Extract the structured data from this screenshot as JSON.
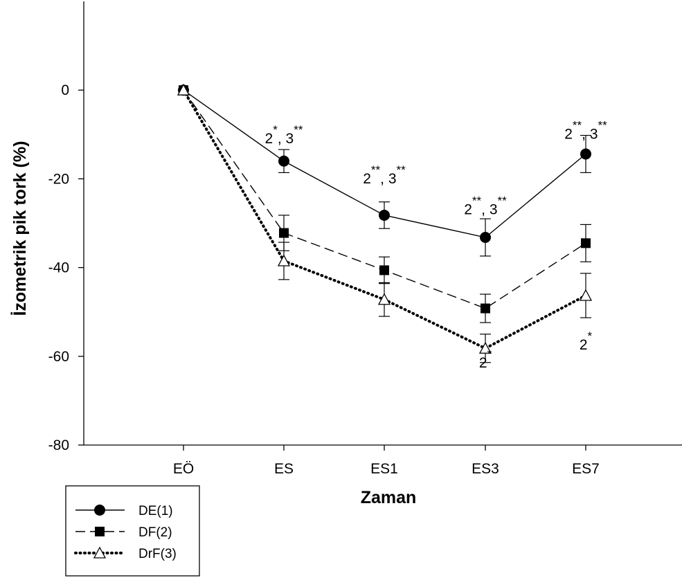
{
  "chart_data": {
    "type": "line",
    "title": "",
    "xlabel": "Zaman",
    "ylabel": "İzometrik pik tork (%)",
    "categories": [
      "EÖ",
      "ES",
      "ES1",
      "ES3",
      "ES7"
    ],
    "ylim": [
      -80,
      20
    ],
    "yticks": [
      0,
      -20,
      -40,
      -60,
      -80
    ],
    "grid": false,
    "legend_position": "bottom-left",
    "series": [
      {
        "name": "DE(1)",
        "marker": "filled-circle",
        "line": "solid",
        "values": [
          0,
          -16,
          -28.2,
          -33.2,
          -14.4
        ],
        "errors": [
          0,
          2.6,
          3,
          4.2,
          4.2
        ]
      },
      {
        "name": "DF(2)",
        "marker": "filled-square",
        "line": "dashed",
        "values": [
          0,
          -32.2,
          -40.6,
          -49.2,
          -34.5
        ],
        "errors": [
          0,
          4,
          3,
          3.2,
          4.2
        ]
      },
      {
        "name": "DrF(3)",
        "marker": "open-triangle",
        "line": "dotted",
        "values": [
          0,
          -38.5,
          -47.2,
          -58.2,
          -46.3
        ],
        "errors": [
          0,
          4.2,
          3.8,
          3.2,
          5
        ]
      }
    ],
    "annotations": [
      {
        "category": "ES",
        "y": -12,
        "parts": [
          {
            "base": "2",
            "sup": "*"
          },
          {
            "base": ", 3",
            "sup": "**"
          }
        ]
      },
      {
        "category": "ES1",
        "y": -21,
        "parts": [
          {
            "base": "2",
            "sup": "**"
          },
          {
            "base": ", 3",
            "sup": "**"
          }
        ]
      },
      {
        "category": "ES3",
        "y": -28,
        "parts": [
          {
            "base": "2",
            "sup": "**"
          },
          {
            "base": ", 3",
            "sup": "**"
          }
        ]
      },
      {
        "category": "ES7",
        "y": -11,
        "parts": [
          {
            "base": "2",
            "sup": "**"
          },
          {
            "base": ", 3",
            "sup": "**"
          }
        ]
      },
      {
        "category": "ES3",
        "y": -62.5,
        "parts": [
          {
            "base": "2",
            "sup": "*"
          }
        ]
      },
      {
        "category": "ES7",
        "y": -58.5,
        "parts": [
          {
            "base": "2",
            "sup": "*"
          }
        ]
      }
    ]
  }
}
